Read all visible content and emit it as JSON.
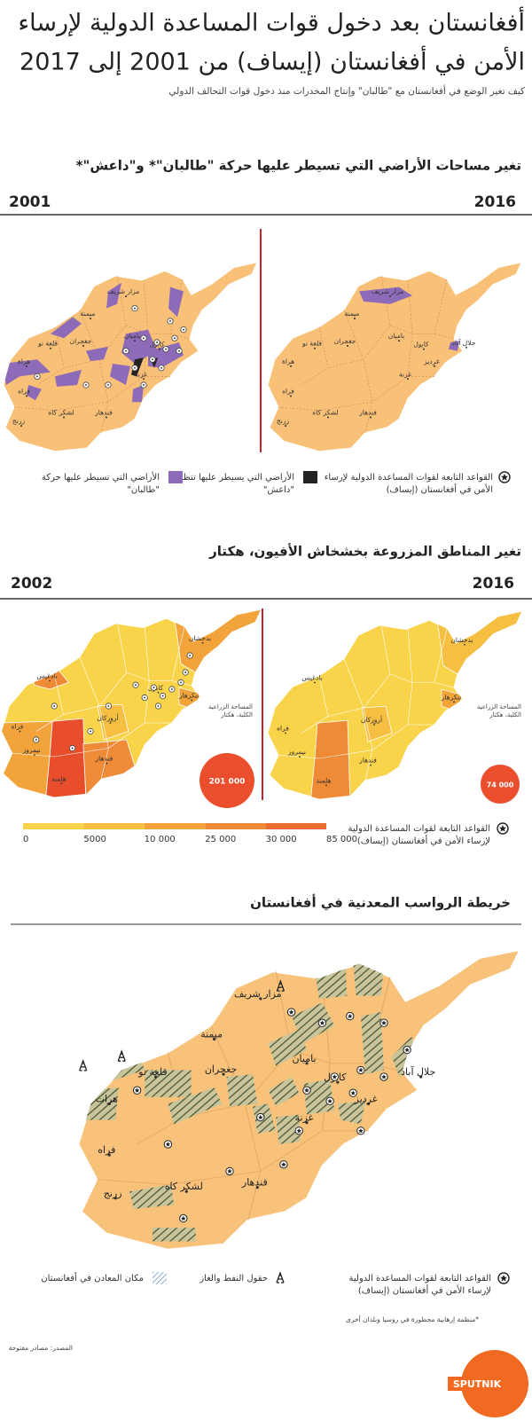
{
  "header": {
    "title": [
      "أفغانستان بعد دخول قوات المساعدة الدولية لإرساء",
      "الأمن في أفغانستان (إيساف) من 2001 إلى 2017"
    ],
    "subtitle": "كيف تغير الوضع في أفغانستان مع \"طالبان\" وإنتاج المخدرات منذ دخول قوات التحالف الدولي"
  },
  "taliban_section": {
    "title": "تغير مساحات الأراضي التي تسيطر عليها حركة \"طالبان\"* و\"داعش\"*",
    "year_left": "2001",
    "year_right": "2016",
    "map_left_cities": [
      "مزار شريف",
      "ميمنة",
      "قلعة نو",
      "هراة",
      "جغجران",
      "باميان",
      "كابول",
      "غزنة",
      "فراه",
      "زرنج",
      "لشكر كاه",
      "قندهار"
    ],
    "map_right_cities": [
      "مزار شريف",
      "ميمنة",
      "قلعة نو",
      "هراة",
      "جغجران",
      "باميان",
      "كابول",
      "جلال آباد",
      "غرديز",
      "غزنة",
      "فراه",
      "زرنج",
      "لشكر كاه",
      "قندهار"
    ],
    "legend": {
      "bases": [
        "القواعد التابعة لقوات المساعدة الدولية لإرساء",
        "الأمن في أفغانستان (إيساف)"
      ],
      "daesh": [
        "الأراضي التي يسيطر عليها تنظيم",
        "\"داعش\""
      ],
      "taliban": [
        "الأراضي التي تسيطر عليها حركة",
        "\"طالبان\""
      ]
    }
  },
  "opium_section": {
    "title": "تغير المناطق المزروعة بخشخاش الأفيون، هكتار",
    "year_left": "2002",
    "year_right": "2016",
    "map_left_regions": [
      "بدخشان",
      "بادغيس",
      "كابول",
      "ننكرهار",
      "أروزكان",
      "فراه",
      "نيمروز",
      "هلمند",
      "قندهار"
    ],
    "map_right_regions": [
      "بدخشان",
      "بادغيس",
      "ننكرهار",
      "أروزكان",
      "فراه",
      "نيمروز",
      "هلمند",
      "قندهار"
    ],
    "total_label": [
      "المساحة الزراعية",
      "الكلية، هكتار"
    ],
    "total_left": "201 000",
    "total_right": "74 000",
    "scale": [
      "0",
      "5000",
      "10 000",
      "25 000",
      "30 000",
      "85 000"
    ],
    "legend_bases": [
      "القواعد التابعة لقوات المساعدة الدولية",
      "لإرساء الأمن في أفغانستان (إيساف)"
    ]
  },
  "minerals_section": {
    "title": "خريطة الرواسب المعدنية في أفغانستان",
    "cities": [
      "مزار شريف",
      "ميمنة",
      "قلعة نو",
      "هرات",
      "جغجران",
      "باميان",
      "كابول",
      "جلال آباد",
      "غرديز",
      "غزنة",
      "فراه",
      "زرنج",
      "لشكر كاه",
      "قندهار"
    ],
    "legend": {
      "bases": [
        "القواعد التابعة لقوات المساعدة الدولية",
        "لإرساء الأمن في أفغانستان (إيساف)"
      ],
      "oil_gas": "حقول النفط والغاز",
      "minerals": "مكان المعادن في أفغانستان"
    }
  },
  "footnote": "*منظمة إرهابية محظورة في روسيا وبلدان أخرى",
  "source": "المصدر: مصادر مفتوحة",
  "brand": "SPUTNIK"
}
